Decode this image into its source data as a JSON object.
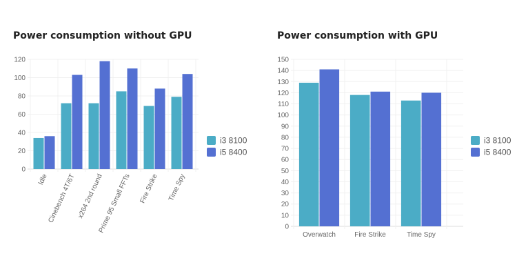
{
  "chart_data": [
    {
      "type": "bar",
      "title": "Power consumption without GPU",
      "categories": [
        "Idle",
        "Cinebench 4T/6T",
        "x264 2nd round",
        "Prime 95 Small FFTs",
        "Fire Strike",
        "Time Spy"
      ],
      "series": [
        {
          "name": "i3 8100",
          "color": "#4bacc6",
          "values": [
            34,
            72,
            72,
            85,
            69,
            79
          ]
        },
        {
          "name": "i5 8400",
          "color": "#5470d2",
          "values": [
            36,
            103,
            118,
            110,
            88,
            104
          ]
        }
      ],
      "ylim": [
        0,
        120
      ],
      "yticks": [
        0,
        20,
        40,
        60,
        80,
        100,
        120
      ],
      "grid": true,
      "legend": "right"
    },
    {
      "type": "bar",
      "title": "Power consumption with GPU",
      "categories": [
        "Overwatch",
        "Fire Strike",
        "Time Spy"
      ],
      "series": [
        {
          "name": "i3 8100",
          "color": "#4bacc6",
          "values": [
            129,
            118,
            113
          ]
        },
        {
          "name": "i5 8400",
          "color": "#5470d2",
          "values": [
            141,
            121,
            120
          ]
        }
      ],
      "ylim": [
        0,
        150
      ],
      "yticks": [
        0,
        10,
        20,
        30,
        40,
        50,
        60,
        70,
        80,
        90,
        100,
        110,
        120,
        130,
        140,
        150
      ],
      "grid": true,
      "legend": "right"
    }
  ]
}
